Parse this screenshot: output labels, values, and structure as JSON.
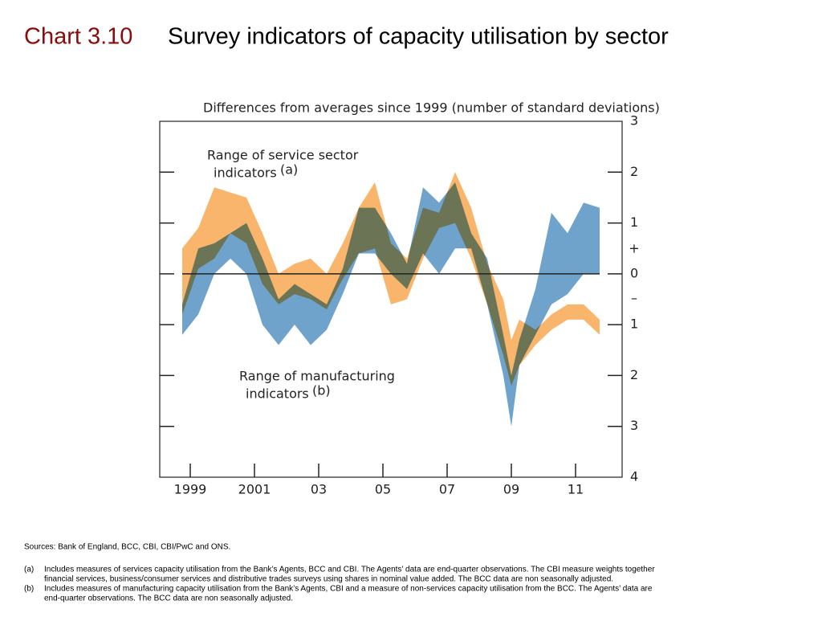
{
  "header": {
    "chart_number": "Chart 3.10",
    "title": "Survey indicators of capacity utilisation by sector"
  },
  "chart_data": {
    "type": "range-area",
    "y_axis_title": "Differences from averages since 1999 (number of standard deviations)",
    "x": [
      1998.75,
      1999.25,
      1999.75,
      2000.25,
      2000.75,
      2001.25,
      2001.75,
      2002.25,
      2002.75,
      2003.25,
      2003.75,
      2004.25,
      2004.75,
      2005.25,
      2005.75,
      2006.25,
      2006.75,
      2007.25,
      2007.75,
      2008.25,
      2008.75,
      2009.0,
      2009.25,
      2009.75,
      2010.25,
      2010.75,
      2011.25,
      2011.75
    ],
    "series": [
      {
        "label_lines": [
          "Range of service sector",
          "indicators"
        ],
        "label_note": "(a)",
        "color": "#f9b56b",
        "low": [
          -0.8,
          0.1,
          0.3,
          0.8,
          0.6,
          -0.2,
          -0.6,
          -0.4,
          -0.5,
          -0.7,
          -0.1,
          0.4,
          0.5,
          -0.6,
          -0.5,
          0.3,
          0.9,
          1.0,
          0.3,
          -0.6,
          -1.6,
          -2.2,
          -1.8,
          -1.4,
          -1.1,
          -0.9,
          -0.9,
          -1.2
        ],
        "high": [
          0.5,
          0.9,
          1.7,
          1.6,
          1.5,
          0.8,
          0.0,
          0.2,
          0.3,
          0.0,
          0.6,
          1.3,
          1.8,
          0.6,
          0.3,
          1.3,
          1.2,
          2.0,
          1.3,
          0.2,
          -0.5,
          -1.3,
          -0.9,
          -1.1,
          -0.8,
          -0.6,
          -0.6,
          -0.9
        ]
      },
      {
        "label_lines": [
          "Range of manufacturing",
          "indicators"
        ],
        "label_note": "(b)",
        "color": "#6fa3cc",
        "low": [
          -1.2,
          -0.8,
          0.0,
          0.3,
          0.0,
          -1.0,
          -1.4,
          -1.0,
          -1.4,
          -1.1,
          -0.4,
          0.4,
          0.4,
          0.0,
          -0.3,
          0.4,
          0.0,
          0.5,
          0.5,
          -0.6,
          -2.0,
          -3.0,
          -1.8,
          -1.2,
          -0.6,
          -0.4,
          0.0,
          0.0
        ],
        "high": [
          -0.6,
          0.5,
          0.6,
          0.8,
          1.0,
          0.3,
          -0.5,
          -0.2,
          -0.4,
          -0.6,
          0.1,
          1.3,
          1.3,
          0.8,
          0.2,
          1.7,
          1.4,
          1.8,
          0.8,
          0.3,
          -1.2,
          -2.0,
          -1.3,
          -0.3,
          1.2,
          0.8,
          1.4,
          1.3
        ]
      }
    ],
    "zero_line": 0,
    "sign_labels": [
      "+",
      "–"
    ],
    "xlim": [
      1998.05,
      2012.45
    ],
    "xticks": [
      1999,
      2001,
      {
        "value": 2003,
        "label": "03"
      },
      {
        "value": 2005,
        "label": "05"
      },
      {
        "value": 2007,
        "label": "07"
      },
      {
        "value": 2009,
        "label": "09"
      },
      {
        "value": 2011,
        "label": "11"
      }
    ],
    "ylim": [
      -4,
      3
    ],
    "yticks": [
      3,
      2,
      1,
      0,
      {
        "value": -1,
        "label": "1"
      },
      {
        "value": -2,
        "label": "2"
      },
      {
        "value": -3,
        "label": "3"
      },
      {
        "value": -4,
        "label": "4"
      }
    ]
  },
  "footer": {
    "sources": "Sources:  Bank of England, BCC, CBI, CBI/PwC and ONS.",
    "notes": [
      {
        "mark": "(a)",
        "lines": [
          "Includes measures of services capacity utilisation from the Bank’s Agents, BCC and CBI.  The Agents’ data are end-quarter observations.  The CBI measure weights together",
          "financial services, business/consumer services and distributive trades surveys using shares in nominal value added.  The BCC data are non seasonally adjusted."
        ]
      },
      {
        "mark": "(b)",
        "lines": [
          "Includes measures of manufacturing capacity utilisation from the Bank’s Agents, CBI and a measure of non-services capacity utilisation from the BCC.  The Agents’ data are",
          "end-quarter observations.  The BCC data are non seasonally adjusted."
        ]
      }
    ]
  }
}
